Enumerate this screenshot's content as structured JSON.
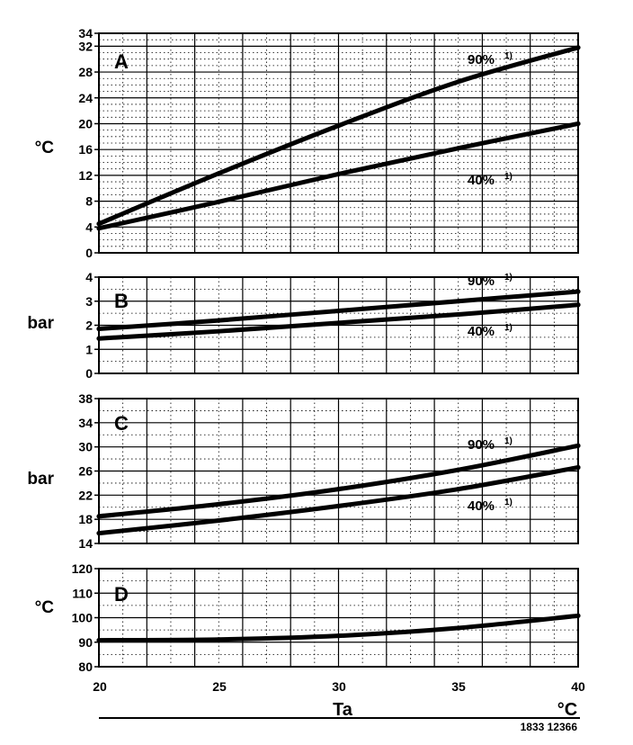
{
  "chart_data": [
    {
      "type": "line",
      "panel": "A",
      "ylabel": "°C",
      "ylim": [
        0,
        34
      ],
      "yticks": [
        "0",
        "4",
        "8",
        "12",
        "16",
        "20",
        "24",
        "28",
        "32",
        "34"
      ],
      "x": [
        20,
        25,
        30,
        35,
        40
      ],
      "series": [
        {
          "name": "90%",
          "sup": "1)",
          "values": [
            4.5,
            12.3,
            19.7,
            26.5,
            31.8
          ]
        },
        {
          "name": "40%",
          "sup": "1)",
          "values": [
            3.8,
            7.9,
            12.2,
            16.2,
            20.0
          ]
        }
      ]
    },
    {
      "type": "line",
      "panel": "B",
      "ylabel": "bar",
      "ylim": [
        0,
        4
      ],
      "yticks": [
        "0",
        "1",
        "2",
        "3",
        "4"
      ],
      "x": [
        20,
        25,
        30,
        35,
        40
      ],
      "series": [
        {
          "name": "90%",
          "sup": "1)",
          "values": [
            1.85,
            2.2,
            2.6,
            3.0,
            3.4
          ]
        },
        {
          "name": "40%",
          "sup": "1)",
          "values": [
            1.45,
            1.75,
            2.1,
            2.45,
            2.85
          ]
        }
      ]
    },
    {
      "type": "line",
      "panel": "C",
      "ylabel": "bar",
      "ylim": [
        14,
        38
      ],
      "yticks": [
        "14",
        "18",
        "22",
        "26",
        "30",
        "34",
        "38"
      ],
      "x": [
        20,
        25,
        30,
        35,
        40
      ],
      "series": [
        {
          "name": "90%",
          "sup": "1)",
          "values": [
            18.5,
            20.5,
            23.0,
            26.2,
            30.2
          ]
        },
        {
          "name": "40%",
          "sup": "1)",
          "values": [
            15.7,
            17.8,
            20.2,
            23.0,
            26.6
          ]
        }
      ]
    },
    {
      "type": "line",
      "panel": "D",
      "ylabel": "°C",
      "ylim": [
        80,
        120
      ],
      "yticks": [
        "80",
        "90",
        "100",
        "110",
        "120"
      ],
      "x": [
        20,
        25,
        30,
        35,
        40
      ],
      "series": [
        {
          "name": "",
          "sup": "",
          "values": [
            90.8,
            91.1,
            92.6,
            95.8,
            100.8
          ]
        }
      ]
    }
  ],
  "x_axis": {
    "label": "Ta",
    "unit": "°C",
    "ticks": [
      "20",
      "25",
      "30",
      "35",
      "40"
    ],
    "xlim": [
      20,
      40
    ]
  },
  "footer": {
    "figure_number": "1833 12366"
  }
}
